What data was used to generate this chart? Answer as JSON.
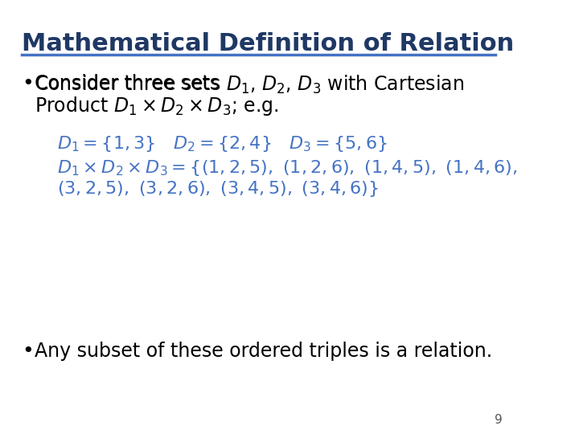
{
  "title": "Mathematical Definition of Relation",
  "title_color": "#1F3864",
  "title_fontsize": 22,
  "title_bold": true,
  "line_color": "#4472C4",
  "background_color": "#FFFFFF",
  "bullet_color": "#000000",
  "math_color": "#4472C4",
  "body_color": "#000000",
  "body_fontsize": 17,
  "math_fontsize": 16,
  "page_number": "9",
  "bullet1_text1": "Consider three sets ",
  "bullet1_math1": "$D_1$, $D_2$, $D_3$",
  "bullet1_text2": " with Cartesian",
  "bullet1_line2_text1": "Product ",
  "bullet1_line2_math": "$D_1 \\times D_2 \\times D_3$",
  "bullet1_line2_text2": "; e.g.",
  "example_line1": "$D_1 = \\{1, 3\\}$   $D_2 = \\{2, 4\\}$   $D_3 = \\{5, 6\\}$",
  "example_line2a": "$D_1 \\times D_2 \\times D_3 = \\{(1,2,5),\\ (1,2,6),\\ (1,4,5),\\ (1,4,6),$",
  "example_line2b": "$(3,2,5),\\ (3,2,6),\\ (3,4,5),\\ (3,4,6)\\}$",
  "bullet2_text": "Any subset of these ordered triples is a relation."
}
